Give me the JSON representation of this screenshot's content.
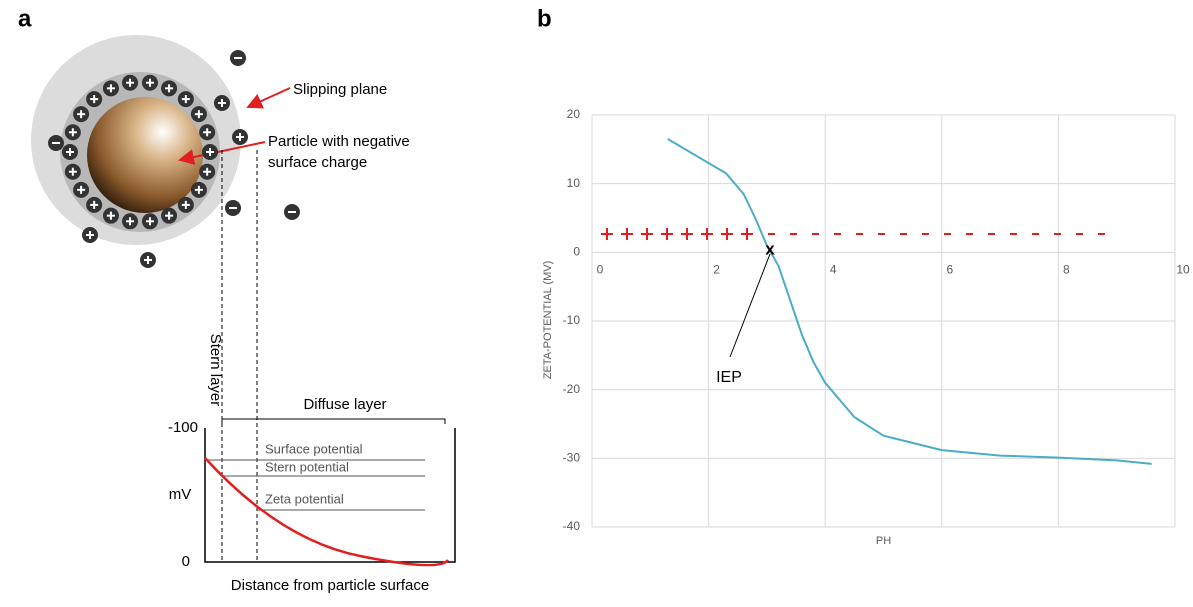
{
  "panel_labels": [
    "a",
    "b"
  ],
  "diagram": {
    "slipping_plane": "Slipping plane",
    "particle_line1": "Particle with negative",
    "particle_line2": "surface charge",
    "stern_layer": "Stern layer",
    "diffuse_layer": "Diffuse layer",
    "surface_potential": "Surface potential",
    "stern_potential": "Stern potential",
    "zeta_potential": "Zeta potential",
    "y_unit": "mV",
    "y_ticks": [
      -100,
      0
    ],
    "x_label": "Distance from particle surface"
  },
  "chart_data": {
    "type": "line",
    "x_label": "PH",
    "y_label": "ZETA-POTENTIAL (MV)",
    "annotation": "IEP",
    "iep_marker": "x",
    "x": [
      1.3,
      1.8,
      2.3,
      2.6,
      2.8,
      3.0,
      3.2,
      3.4,
      3.6,
      3.8,
      4.0,
      4.5,
      5.0,
      6.0,
      7.0,
      8.0,
      9.0,
      9.6
    ],
    "series": [
      {
        "color": "#4bacc6",
        "values": [
          16.5,
          14,
          11.5,
          8.5,
          5,
          1,
          -2,
          -7,
          -12,
          -16,
          -19,
          -24,
          -26.7,
          -28.8,
          -29.6,
          -29.9,
          -30.3,
          -30.8
        ]
      }
    ],
    "xlim": [
      0,
      10
    ],
    "ylim": [
      -40,
      20
    ],
    "xticks": [
      0,
      2,
      4,
      6,
      8,
      10
    ],
    "yticks": [
      -40,
      -30,
      -20,
      -10,
      0,
      10,
      20
    ],
    "grid": true
  }
}
